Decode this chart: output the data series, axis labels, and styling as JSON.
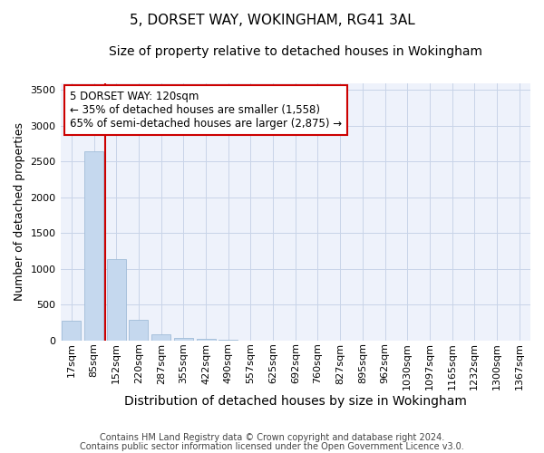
{
  "title": "5, DORSET WAY, WOKINGHAM, RG41 3AL",
  "subtitle": "Size of property relative to detached houses in Wokingham",
  "xlabel": "Distribution of detached houses by size in Wokingham",
  "ylabel": "Number of detached properties",
  "footnote1": "Contains HM Land Registry data © Crown copyright and database right 2024.",
  "footnote2": "Contains public sector information licensed under the Open Government Licence v3.0.",
  "bar_labels": [
    "17sqm",
    "85sqm",
    "152sqm",
    "220sqm",
    "287sqm",
    "355sqm",
    "422sqm",
    "490sqm",
    "557sqm",
    "625sqm",
    "692sqm",
    "760sqm",
    "827sqm",
    "895sqm",
    "962sqm",
    "1030sqm",
    "1097sqm",
    "1165sqm",
    "1232sqm",
    "1300sqm",
    "1367sqm"
  ],
  "bar_values": [
    280,
    2640,
    1140,
    290,
    90,
    40,
    20,
    5,
    0,
    0,
    0,
    0,
    0,
    0,
    0,
    0,
    0,
    0,
    0,
    0,
    0
  ],
  "bar_color": "#c5d8ee",
  "bar_edge_color": "#a0bcd8",
  "grid_color": "#c8d4e8",
  "background_color": "#ffffff",
  "plot_bg_color": "#eef2fb",
  "red_line_color": "#cc0000",
  "annotation_line1": "5 DORSET WAY: 120sqm",
  "annotation_line2": "← 35% of detached houses are smaller (1,558)",
  "annotation_line3": "65% of semi-detached houses are larger (2,875) →",
  "annotation_box_color": "white",
  "annotation_box_edge": "#cc0000",
  "ylim": [
    0,
    3600
  ],
  "yticks": [
    0,
    500,
    1000,
    1500,
    2000,
    2500,
    3000,
    3500
  ],
  "title_fontsize": 11,
  "subtitle_fontsize": 10,
  "xlabel_fontsize": 10,
  "ylabel_fontsize": 9,
  "tick_fontsize": 8,
  "annotation_fontsize": 8.5,
  "footnote_fontsize": 7
}
